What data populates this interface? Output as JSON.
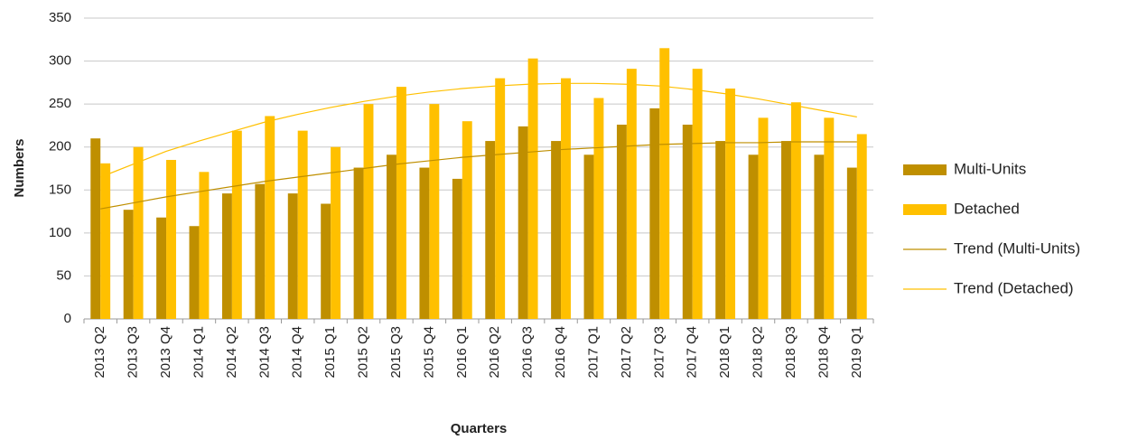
{
  "chart_data": {
    "type": "bar",
    "y_label": "Numbers",
    "x_label": "Quarters",
    "categories": [
      "2013 Q2",
      "2013 Q3",
      "2013 Q4",
      "2014 Q1",
      "2014 Q2",
      "2014 Q3",
      "2014 Q4",
      "2015 Q1",
      "2015 Q2",
      "2015 Q3",
      "2015 Q4",
      "2016 Q1",
      "2016 Q2",
      "2016 Q3",
      "2016 Q4",
      "2017 Q1",
      "2017 Q2",
      "2017 Q3",
      "2017 Q4",
      "2018 Q1",
      "2018 Q2",
      "2018 Q3",
      "2018 Q4",
      "2019 Q1"
    ],
    "series": [
      {
        "name": "Multi-Units",
        "color": "#bf8f00",
        "values": [
          210,
          127,
          118,
          108,
          146,
          157,
          146,
          134,
          176,
          191,
          176,
          163,
          207,
          224,
          207,
          191,
          226,
          245,
          226,
          207,
          191,
          207,
          191,
          176
        ]
      },
      {
        "name": "Detached",
        "color": "#ffc000",
        "values": [
          181,
          200,
          185,
          171,
          219,
          236,
          219,
          200,
          250,
          270,
          250,
          230,
          280,
          303,
          280,
          257,
          291,
          315,
          291,
          268,
          234,
          252,
          234,
          215
        ]
      }
    ],
    "trendlines": [
      {
        "name": "Trend (Multi-Units)",
        "color": "#bf8f00",
        "values": [
          128,
          135,
          142,
          148,
          154,
          160,
          165,
          170,
          175,
          180,
          184,
          188,
          191,
          194,
          197,
          199,
          201,
          203,
          204,
          205,
          205,
          206,
          206,
          206
        ]
      },
      {
        "name": "Trend (Detached)",
        "color": "#ffc000",
        "values": [
          165,
          180,
          195,
          207,
          218,
          229,
          238,
          246,
          253,
          259,
          264,
          268,
          271,
          273,
          274,
          274,
          273,
          271,
          267,
          262,
          256,
          249,
          242,
          235
        ]
      }
    ],
    "ylim": [
      0,
      350
    ],
    "yticks": [
      0,
      50,
      100,
      150,
      200,
      250,
      300,
      350
    ],
    "grid": true,
    "legend": "right"
  }
}
